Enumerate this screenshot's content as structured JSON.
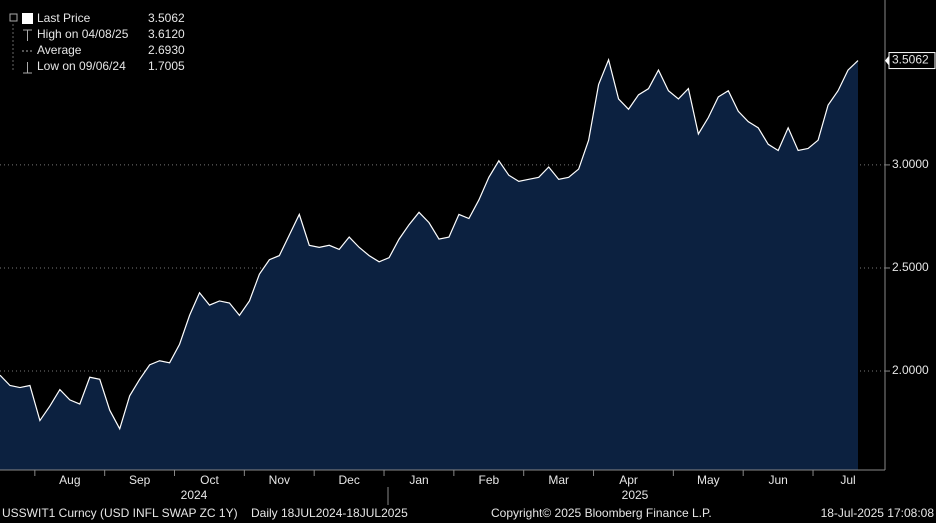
{
  "chart_data": {
    "type": "area",
    "series": [
      {
        "name": "Last Price",
        "color": "#ffffff",
        "fill": "#0c2140",
        "values": [
          1.98,
          1.93,
          1.92,
          1.93,
          1.76,
          1.83,
          1.91,
          1.86,
          1.84,
          1.97,
          1.96,
          1.81,
          1.72,
          1.88,
          1.96,
          2.03,
          2.05,
          2.04,
          2.13,
          2.27,
          2.38,
          2.32,
          2.34,
          2.33,
          2.27,
          2.34,
          2.47,
          2.54,
          2.56,
          2.66,
          2.76,
          2.61,
          2.6,
          2.61,
          2.59,
          2.65,
          2.6,
          2.56,
          2.53,
          2.55,
          2.64,
          2.71,
          2.77,
          2.72,
          2.64,
          2.65,
          2.76,
          2.74,
          2.83,
          2.94,
          3.02,
          2.95,
          2.92,
          2.93,
          2.94,
          2.99,
          2.93,
          2.94,
          2.98,
          3.12,
          3.39,
          3.51,
          3.32,
          3.27,
          3.34,
          3.37,
          3.46,
          3.36,
          3.32,
          3.37,
          3.15,
          3.23,
          3.33,
          3.36,
          3.26,
          3.21,
          3.18,
          3.1,
          3.07,
          3.18,
          3.07,
          3.08,
          3.12,
          3.29,
          3.36,
          3.46,
          3.5062
        ]
      }
    ],
    "categories": [
      null,
      null,
      null,
      null,
      null,
      null,
      null,
      "Aug",
      null,
      null,
      null,
      null,
      null,
      null,
      "Sep",
      null,
      null,
      null,
      null,
      null,
      null,
      "Oct",
      null,
      null,
      null,
      null,
      null,
      null,
      "Nov",
      null,
      null,
      null,
      null,
      null,
      null,
      "Dec",
      null,
      null,
      null,
      null,
      null,
      null,
      "Jan",
      null,
      null,
      null,
      null,
      null,
      null,
      "Feb",
      null,
      null,
      null,
      null,
      null,
      null,
      "Mar",
      null,
      null,
      null,
      null,
      null,
      null,
      "Apr",
      null,
      null,
      null,
      null,
      null,
      null,
      null,
      "May",
      null,
      null,
      null,
      null,
      null,
      null,
      "Jun",
      null,
      null,
      null,
      null,
      null,
      null,
      "Jul",
      null
    ],
    "years": [
      "2024",
      "2025"
    ],
    "ylim": [
      1.52,
      3.8
    ],
    "yticks": [
      {
        "value": 2,
        "label": "2.0000"
      },
      {
        "value": 2.5,
        "label": "2.5000"
      },
      {
        "value": 3,
        "label": "3.0000"
      }
    ],
    "grid": true,
    "legend": [
      {
        "label": "Last Price",
        "value": 3.5062
      },
      {
        "label": "High on 04/08/25",
        "value": 3.612,
        "value_label": "3.6120"
      },
      {
        "label": "Average",
        "value": 2.693,
        "value_label": "2.6930"
      },
      {
        "label": "Low on 09/06/24",
        "value": 1.7005
      }
    ],
    "footer": {
      "security": "USSWIT1 Curncy (USD INFL SWAP ZC 1Y)",
      "range": "Daily 18JUL2024-18JUL2025",
      "copyright": "Copyright© 2025 Bloomberg Finance L.P.",
      "timestamp": "18-Jul-2025 17:08:08"
    }
  }
}
